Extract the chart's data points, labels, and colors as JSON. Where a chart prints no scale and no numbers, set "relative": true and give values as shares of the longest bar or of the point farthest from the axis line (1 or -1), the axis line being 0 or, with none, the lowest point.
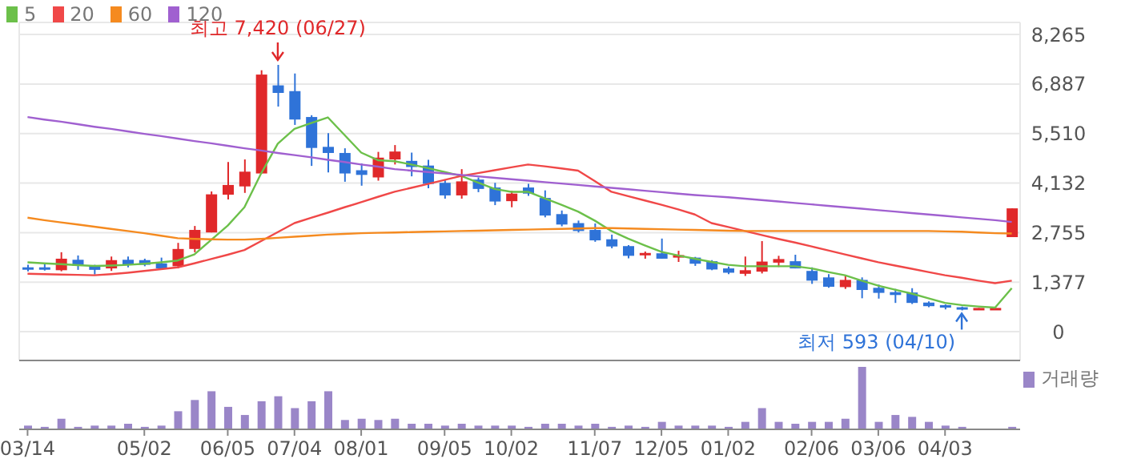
{
  "chart_data": [
    {
      "type": "candlestick",
      "ohlc": [
        [
          1790,
          1860,
          1680,
          1750
        ],
        [
          1790,
          1880,
          1700,
          1760
        ],
        [
          1710,
          2210,
          1680,
          2030
        ],
        [
          2000,
          2120,
          1720,
          1830
        ],
        [
          1830,
          1860,
          1590,
          1720
        ],
        [
          1760,
          2090,
          1690,
          1990
        ],
        [
          2000,
          2090,
          1790,
          1860
        ],
        [
          1990,
          2030,
          1820,
          1860
        ],
        [
          1900,
          2060,
          1760,
          1760
        ],
        [
          1820,
          2470,
          1760,
          2300
        ],
        [
          2300,
          2940,
          2210,
          2830
        ],
        [
          2760,
          3900,
          2760,
          3820
        ],
        [
          3810,
          4720,
          3680,
          4080
        ],
        [
          4040,
          4790,
          3860,
          4450
        ],
        [
          4400,
          7270,
          4400,
          7150
        ],
        [
          6850,
          7420,
          6260,
          6640
        ],
        [
          6690,
          7180,
          5750,
          5900
        ],
        [
          5970,
          6020,
          4610,
          5110
        ],
        [
          5140,
          5520,
          4430,
          4970
        ],
        [
          4970,
          5100,
          4170,
          4400
        ],
        [
          4490,
          4680,
          4060,
          4360
        ],
        [
          4290,
          5000,
          4200,
          4840
        ],
        [
          4790,
          5190,
          4650,
          5010
        ],
        [
          4750,
          4980,
          4320,
          4580
        ],
        [
          4620,
          4780,
          3990,
          4110
        ],
        [
          4140,
          4230,
          3700,
          3790
        ],
        [
          3790,
          4520,
          3700,
          4180
        ],
        [
          4230,
          4290,
          3880,
          3970
        ],
        [
          4010,
          4140,
          3520,
          3620
        ],
        [
          3630,
          3920,
          3460,
          3840
        ],
        [
          4010,
          4110,
          3780,
          3840
        ],
        [
          3720,
          3930,
          3180,
          3230
        ],
        [
          3270,
          3370,
          2930,
          2980
        ],
        [
          3020,
          3090,
          2760,
          2800
        ],
        [
          2830,
          3010,
          2500,
          2540
        ],
        [
          2570,
          2700,
          2320,
          2370
        ],
        [
          2380,
          2410,
          2040,
          2110
        ],
        [
          2160,
          2230,
          2030,
          2190
        ],
        [
          2180,
          2590,
          2030,
          2030
        ],
        [
          2060,
          2250,
          1940,
          2130
        ],
        [
          2060,
          2080,
          1830,
          1890
        ],
        [
          1960,
          1990,
          1710,
          1730
        ],
        [
          1760,
          1810,
          1600,
          1640
        ],
        [
          1610,
          2090,
          1550,
          1710
        ],
        [
          1670,
          2520,
          1620,
          1950
        ],
        [
          1920,
          2110,
          1800,
          2020
        ],
        [
          1960,
          2140,
          1760,
          1760
        ],
        [
          1690,
          1790,
          1330,
          1420
        ],
        [
          1510,
          1600,
          1220,
          1250
        ],
        [
          1240,
          1580,
          1190,
          1440
        ],
        [
          1440,
          1510,
          930,
          1160
        ],
        [
          1220,
          1310,
          920,
          1080
        ],
        [
          1100,
          1190,
          800,
          1020
        ],
        [
          1090,
          1210,
          770,
          800
        ],
        [
          810,
          840,
          680,
          710
        ],
        [
          740,
          760,
          620,
          670
        ],
        [
          680,
          700,
          593,
          640
        ],
        [
          650,
          660,
          650,
          660
        ],
        [
          650,
          660,
          650,
          660
        ],
        [
          2630,
          3430,
          2630,
          3430
        ]
      ],
      "colors": [
        "#2f73d8",
        "#2f73d8",
        "#e0282a",
        "#2f73d8",
        "#2f73d8",
        "#e0282a",
        "#2f73d8",
        "#2f73d8",
        "#2f73d8",
        "#e0282a",
        "#e0282a",
        "#e0282a",
        "#e0282a",
        "#e0282a",
        "#e0282a",
        "#2f73d8",
        "#2f73d8",
        "#2f73d8",
        "#2f73d8",
        "#2f73d8",
        "#2f73d8",
        "#e0282a",
        "#e0282a",
        "#2f73d8",
        "#2f73d8",
        "#2f73d8",
        "#e0282a",
        "#2f73d8",
        "#2f73d8",
        "#e0282a",
        "#2f73d8",
        "#2f73d8",
        "#2f73d8",
        "#2f73d8",
        "#2f73d8",
        "#2f73d8",
        "#2f73d8",
        "#e0282a",
        "#2f73d8",
        "#e0282a",
        "#2f73d8",
        "#2f73d8",
        "#2f73d8",
        "#e0282a",
        "#e0282a",
        "#e0282a",
        "#2f73d8",
        "#2f73d8",
        "#2f73d8",
        "#e0282a",
        "#2f73d8",
        "#2f73d8",
        "#2f73d8",
        "#2f73d8",
        "#2f73d8",
        "#2f73d8",
        "#2f73d8",
        "#e0282a",
        "#e0282a",
        "#e0282a"
      ],
      "series": [
        {
          "name": "5",
          "type": "line",
          "color": "#6cc04a",
          "values": [
            1930,
            1900,
            1880,
            1850,
            1830,
            1840,
            1860,
            1890,
            1930,
            1980,
            2150,
            2550,
            2950,
            3460,
            4400,
            5230,
            5640,
            5800,
            5960,
            5470,
            4980,
            4770,
            4740,
            4650,
            4550,
            4440,
            4330,
            4150,
            3970,
            3890,
            3890,
            3710,
            3530,
            3340,
            3090,
            2800,
            2590,
            2400,
            2220,
            2120,
            2030,
            1940,
            1860,
            1820,
            1820,
            1820,
            1820,
            1760,
            1660,
            1570,
            1420,
            1280,
            1170,
            1060,
            930,
            800,
            740,
            700,
            670,
            1210
          ]
        },
        {
          "name": "20",
          "type": "line",
          "color": "#f04848",
          "values": [
            1610,
            1600,
            1590,
            1580,
            1570,
            1600,
            1640,
            1690,
            1740,
            1790,
            1900,
            2020,
            2140,
            2270,
            2520,
            2770,
            3020,
            3170,
            3310,
            3460,
            3600,
            3750,
            3890,
            4000,
            4110,
            4220,
            4330,
            4410,
            4490,
            4570,
            4650,
            4600,
            4540,
            4480,
            4190,
            3890,
            3770,
            3650,
            3530,
            3400,
            3260,
            3020,
            2910,
            2800,
            2690,
            2580,
            2480,
            2370,
            2260,
            2150,
            2040,
            1930,
            1840,
            1750,
            1660,
            1570,
            1500,
            1420,
            1350,
            1420
          ]
        },
        {
          "name": "60",
          "type": "line",
          "color": "#f58a1f",
          "values": [
            3170,
            3100,
            3040,
            2980,
            2920,
            2860,
            2800,
            2740,
            2670,
            2600,
            2580,
            2570,
            2560,
            2560,
            2580,
            2610,
            2640,
            2670,
            2700,
            2720,
            2740,
            2750,
            2760,
            2770,
            2780,
            2790,
            2800,
            2810,
            2820,
            2830,
            2840,
            2850,
            2860,
            2870,
            2880,
            2880,
            2870,
            2860,
            2850,
            2840,
            2830,
            2820,
            2810,
            2800,
            2800,
            2800,
            2800,
            2800,
            2800,
            2800,
            2800,
            2800,
            2800,
            2800,
            2800,
            2790,
            2780,
            2760,
            2740,
            2730
          ]
        },
        {
          "name": "120",
          "type": "line",
          "color": "#a060d0",
          "values": [
            5970,
            5900,
            5840,
            5770,
            5700,
            5640,
            5570,
            5500,
            5440,
            5370,
            5300,
            5240,
            5170,
            5100,
            5040,
            4970,
            4910,
            4850,
            4780,
            4720,
            4650,
            4590,
            4520,
            4480,
            4440,
            4400,
            4360,
            4320,
            4280,
            4240,
            4200,
            4160,
            4120,
            4080,
            4040,
            4000,
            3960,
            3920,
            3880,
            3840,
            3800,
            3770,
            3740,
            3700,
            3660,
            3620,
            3580,
            3540,
            3500,
            3460,
            3420,
            3380,
            3340,
            3300,
            3260,
            3220,
            3180,
            3140,
            3100,
            3050
          ]
        }
      ],
      "ylim": [
        -800,
        8600
      ],
      "yticks": [
        0,
        {
          "value": 1377,
          "label": "1,377"
        },
        {
          "value": 2755,
          "label": "2,755"
        },
        {
          "value": 4132,
          "label": "4,132"
        },
        {
          "value": 5510,
          "label": "5,510"
        },
        {
          "value": 6887,
          "label": "6,887"
        },
        {
          "value": 8265,
          "label": "8,265"
        }
      ],
      "annotations": [
        "최고 7,420 (06/27)",
        "최저 593 (04/10)"
      ],
      "grid": true,
      "legend": "top left",
      "marker": "none",
      "tick_labels": "y"
    },
    {
      "type": "bar",
      "relative": true,
      "categories": [
        "03/14",
        null,
        null,
        null,
        null,
        null,
        null,
        "05/02",
        null,
        null,
        null,
        null,
        "06/05",
        null,
        null,
        null,
        "07/04",
        null,
        null,
        null,
        "08/01",
        null,
        null,
        null,
        null,
        "09/05",
        null,
        null,
        null,
        "10/02",
        null,
        null,
        null,
        null,
        "11/07",
        null,
        null,
        null,
        "12/05",
        null,
        null,
        null,
        "01/02",
        null,
        null,
        null,
        null,
        "02/06",
        null,
        null,
        null,
        "03/06",
        null,
        null,
        null,
        "04/03",
        null,
        null,
        null,
        null
      ],
      "series": [
        {
          "name": "거래량",
          "color": "#9a86c8",
          "values": [
            0.06,
            0.04,
            0.17,
            0.04,
            0.06,
            0.06,
            0.09,
            0.04,
            0.06,
            0.29,
            0.47,
            0.61,
            0.36,
            0.23,
            0.45,
            0.53,
            0.34,
            0.45,
            0.61,
            0.15,
            0.17,
            0.15,
            0.17,
            0.09,
            0.09,
            0.06,
            0.09,
            0.06,
            0.06,
            0.06,
            0.04,
            0.09,
            0.09,
            0.06,
            0.09,
            0.04,
            0.06,
            0.04,
            0.12,
            0.06,
            0.06,
            0.06,
            0.04,
            0.12,
            0.34,
            0.12,
            0.09,
            0.12,
            0.12,
            0.17,
            1,
            0.12,
            0.23,
            0.2,
            0.12,
            0.06,
            0.04,
            0,
            0,
            0.04
          ]
        }
      ],
      "legend": "top right",
      "tick_labels": "x"
    }
  ]
}
